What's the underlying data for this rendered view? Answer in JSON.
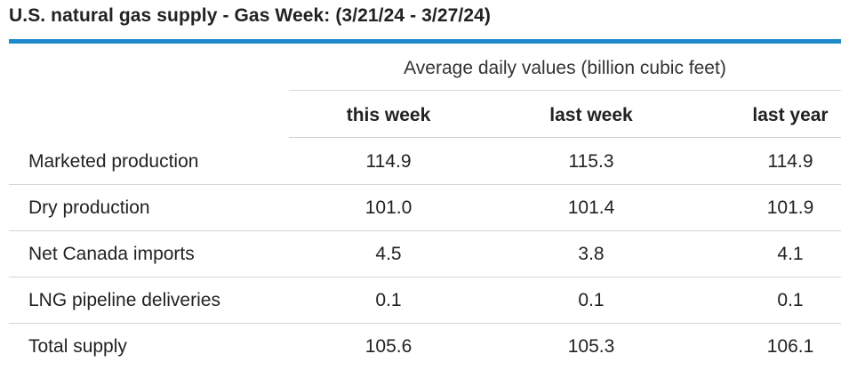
{
  "title": "U.S. natural gas supply - Gas Week: (3/21/24 - 3/27/24)",
  "group_header": "Average daily values (billion cubic feet)",
  "columns": [
    "this week",
    "last week",
    "last year"
  ],
  "rows": [
    {
      "label": "Marketed production",
      "this_week": "114.9",
      "last_week": "115.3",
      "last_year": "114.9"
    },
    {
      "label": "Dry production",
      "this_week": "101.0",
      "last_week": "101.4",
      "last_year": "101.9"
    },
    {
      "label": "Net Canada imports",
      "this_week": "4.5",
      "last_week": "3.8",
      "last_year": "4.1"
    },
    {
      "label": "LNG pipeline deliveries",
      "this_week": "0.1",
      "last_week": "0.1",
      "last_year": "0.1"
    },
    {
      "label": "Total supply",
      "this_week": "105.6",
      "last_week": "105.3",
      "last_year": "106.1"
    }
  ],
  "colors": {
    "accent_rule": "#1f88c9",
    "text": "#222222",
    "divider": "#d4d4d4"
  }
}
